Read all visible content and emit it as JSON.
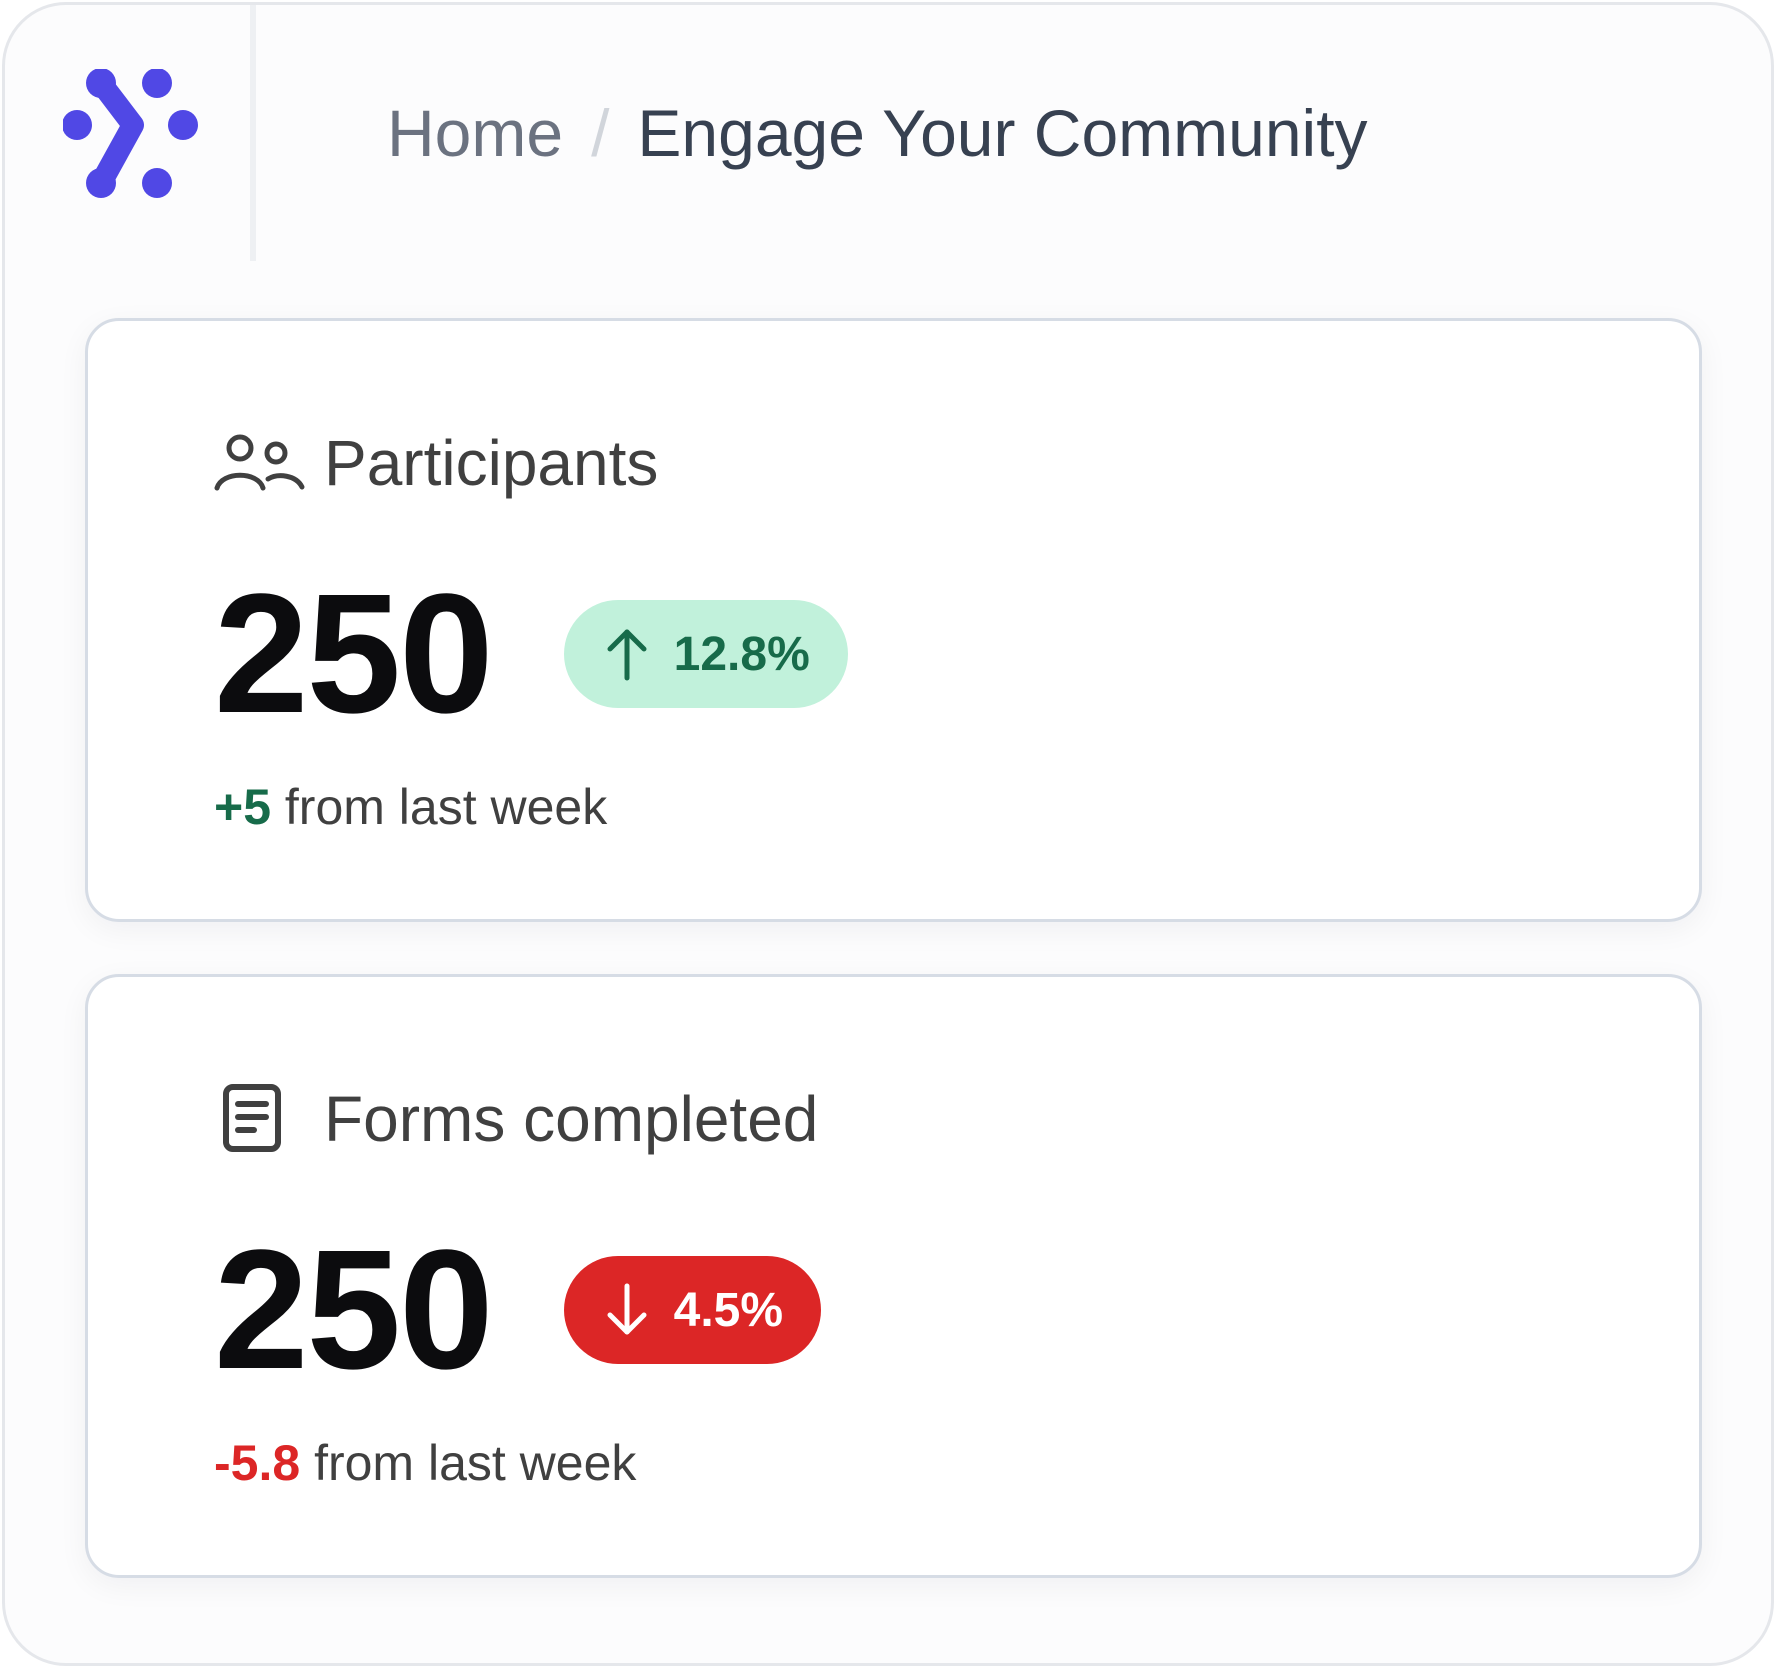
{
  "breadcrumb": {
    "home": "Home",
    "separator": "/",
    "current": "Engage Your Community"
  },
  "logo": {
    "icon": "brand-dots-logo",
    "color": "#5048e5"
  },
  "cards": [
    {
      "icon": "users-icon",
      "title": "Participants",
      "value": "250",
      "badge": {
        "direction": "up",
        "arrow_icon": "arrow-up-icon",
        "text": "12.8%",
        "bg": "#c1f1db",
        "fg": "#176b4a"
      },
      "delta": "+5",
      "delta_suffix": " from last week"
    },
    {
      "icon": "document-icon",
      "title": "Forms completed",
      "value": "250",
      "badge": {
        "direction": "down",
        "arrow_icon": "arrow-down-icon",
        "text": "4.5%",
        "bg": "#dc2626",
        "fg": "#ffffff"
      },
      "delta": "-5.8",
      "delta_suffix": " from last week"
    }
  ]
}
